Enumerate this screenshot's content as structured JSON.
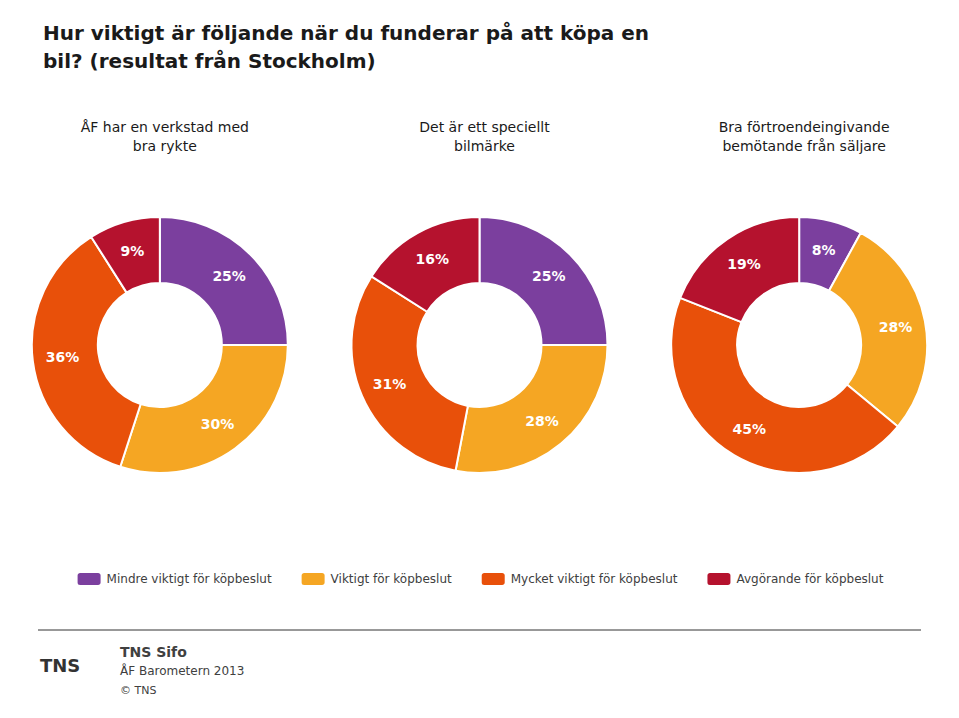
{
  "chart_data": {
    "type": "pie",
    "title": "Hur viktigt är följande när du funderar på att köpa en\nbil? (resultat från Stockholm)",
    "categories": [
      "Mindre viktigt för köpbeslut",
      "Viktigt för köpbeslut",
      "Mycket viktigt för köpbeslut",
      "Avgörande för köpbeslut"
    ],
    "colors": [
      "#7B3F9E",
      "#F5A623",
      "#E8500A",
      "#B5122E"
    ],
    "series": [
      {
        "name": "ÅF har en verkstad med\nbra rykte",
        "values": [
          25,
          30,
          36,
          9
        ],
        "value_labels": [
          "25%",
          "30%",
          "36%",
          "9%"
        ]
      },
      {
        "name": "Det är ett speciellt\nbilmärke",
        "values": [
          25,
          28,
          31,
          16
        ],
        "value_labels": [
          "25%",
          "28%",
          "31%",
          "16%"
        ]
      },
      {
        "name": "Bra förtroendeingivande\nbemötande från säljare",
        "values": [
          8,
          28,
          45,
          19
        ],
        "value_labels": [
          "8%",
          "28%",
          "45%",
          "19%"
        ]
      }
    ],
    "data_labels": true,
    "legend": "bottom",
    "annotations": [
      "TNS",
      "TNS Sifo",
      "ÅF Barometern 2013",
      "© TNS"
    ]
  }
}
